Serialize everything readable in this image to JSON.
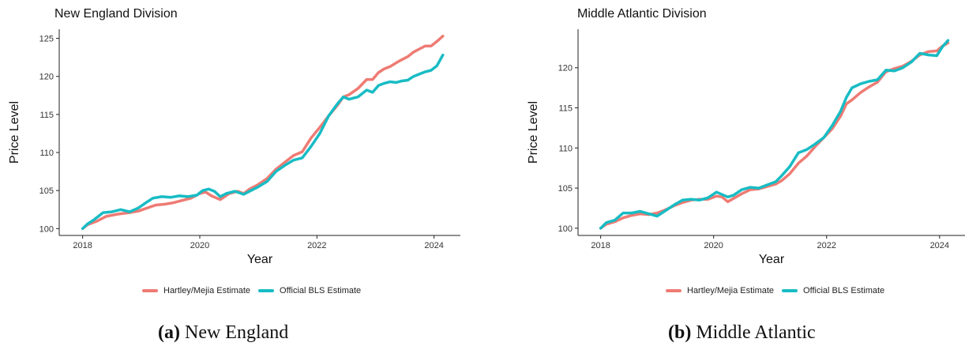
{
  "colors": {
    "hartley": "#ee7b74",
    "bls": "#18bcc4"
  },
  "legend": {
    "hartley_label": "Hartley/Mejia Estimate",
    "bls_label": "Official BLS Estimate"
  },
  "chart_data": [
    {
      "type": "line",
      "title": "New England Division",
      "xlabel": "Year",
      "ylabel": "Price Level",
      "xlim": [
        2017.6,
        2024.45
      ],
      "ylim": [
        99.1,
        126.2
      ],
      "xticks": [
        2018,
        2020,
        2022,
        2024
      ],
      "yticks": [
        100,
        105,
        110,
        115,
        120,
        125
      ],
      "legend_position": "bottom",
      "caption_letter": "(a)",
      "caption_text": "New England",
      "series": [
        {
          "name": "Hartley/Mejia Estimate",
          "color": "#ee7b74",
          "x": [
            2018.0,
            2018.08,
            2018.25,
            2018.4,
            2018.6,
            2018.8,
            2018.95,
            2019.1,
            2019.25,
            2019.4,
            2019.55,
            2019.7,
            2019.85,
            2020.0,
            2020.1,
            2020.2,
            2020.35,
            2020.5,
            2020.65,
            2020.75,
            2020.85,
            2021.0,
            2021.15,
            2021.3,
            2021.45,
            2021.6,
            2021.75,
            2021.9,
            2022.05,
            2022.2,
            2022.35,
            2022.45,
            2022.55,
            2022.7,
            2022.85,
            2022.95,
            2023.05,
            2023.15,
            2023.25,
            2023.4,
            2023.55,
            2023.65,
            2023.75,
            2023.85,
            2023.95,
            2024.05,
            2024.15
          ],
          "y": [
            100.0,
            100.5,
            101.0,
            101.6,
            101.9,
            102.1,
            102.3,
            102.7,
            103.1,
            103.2,
            103.4,
            103.7,
            104.0,
            104.6,
            104.8,
            104.3,
            103.8,
            104.6,
            104.9,
            104.6,
            105.2,
            105.8,
            106.6,
            107.8,
            108.7,
            109.6,
            110.1,
            111.9,
            113.3,
            114.8,
            116.2,
            117.3,
            117.6,
            118.4,
            119.6,
            119.6,
            120.5,
            121.0,
            121.3,
            122.0,
            122.6,
            123.2,
            123.6,
            124.0,
            124.0,
            124.6,
            125.3
          ]
        },
        {
          "name": "Official BLS Estimate",
          "color": "#18bcc4",
          "x": [
            2018.0,
            2018.08,
            2018.2,
            2018.35,
            2018.5,
            2018.65,
            2018.8,
            2018.95,
            2019.1,
            2019.2,
            2019.35,
            2019.5,
            2019.65,
            2019.8,
            2019.95,
            2020.05,
            2020.15,
            2020.25,
            2020.35,
            2020.45,
            2020.6,
            2020.75,
            2020.85,
            2021.0,
            2021.15,
            2021.3,
            2021.45,
            2021.6,
            2021.75,
            2021.9,
            2022.05,
            2022.2,
            2022.35,
            2022.45,
            2022.55,
            2022.7,
            2022.85,
            2022.95,
            2023.05,
            2023.15,
            2023.25,
            2023.35,
            2023.45,
            2023.55,
            2023.65,
            2023.75,
            2023.85,
            2023.95,
            2024.05,
            2024.15
          ],
          "y": [
            100.0,
            100.6,
            101.2,
            102.1,
            102.2,
            102.5,
            102.2,
            102.7,
            103.5,
            104.0,
            104.2,
            104.1,
            104.3,
            104.2,
            104.4,
            105.0,
            105.2,
            104.9,
            104.2,
            104.6,
            104.9,
            104.5,
            104.9,
            105.5,
            106.2,
            107.5,
            108.3,
            109.0,
            109.3,
            110.8,
            112.5,
            114.8,
            116.4,
            117.3,
            117.0,
            117.3,
            118.2,
            117.9,
            118.8,
            119.1,
            119.3,
            119.2,
            119.4,
            119.5,
            120.0,
            120.3,
            120.6,
            120.8,
            121.4,
            122.8
          ]
        }
      ]
    },
    {
      "type": "line",
      "title": "Middle Atlantic Division",
      "xlabel": "Year",
      "ylabel": "Price Level",
      "xlim": [
        2017.6,
        2024.45
      ],
      "ylim": [
        99.1,
        124.8
      ],
      "xticks": [
        2018,
        2020,
        2022,
        2024
      ],
      "yticks": [
        100,
        105,
        110,
        115,
        120
      ],
      "legend_position": "bottom",
      "caption_letter": "(b)",
      "caption_text": "Middle Atlantic",
      "series": [
        {
          "name": "Hartley/Mejia Estimate",
          "color": "#ee7b74",
          "x": [
            2018.0,
            2018.1,
            2018.25,
            2018.4,
            2018.55,
            2018.7,
            2018.85,
            2019.0,
            2019.15,
            2019.3,
            2019.45,
            2019.6,
            2019.75,
            2019.9,
            2020.05,
            2020.15,
            2020.25,
            2020.35,
            2020.5,
            2020.65,
            2020.8,
            2020.95,
            2021.1,
            2021.2,
            2021.35,
            2021.5,
            2021.65,
            2021.8,
            2021.95,
            2022.1,
            2022.25,
            2022.35,
            2022.45,
            2022.6,
            2022.75,
            2022.9,
            2023.05,
            2023.2,
            2023.35,
            2023.5,
            2023.65,
            2023.8,
            2023.95,
            2024.05,
            2024.15
          ],
          "y": [
            100.0,
            100.5,
            100.8,
            101.3,
            101.6,
            101.8,
            101.7,
            101.9,
            102.3,
            102.8,
            103.2,
            103.5,
            103.6,
            103.6,
            104.0,
            103.9,
            103.3,
            103.7,
            104.3,
            104.8,
            104.9,
            105.2,
            105.5,
            105.9,
            106.8,
            108.1,
            109.0,
            110.2,
            111.3,
            112.4,
            114.0,
            115.5,
            116.0,
            116.9,
            117.6,
            118.2,
            119.5,
            119.9,
            120.2,
            120.8,
            121.6,
            122.0,
            122.1,
            122.7,
            123.1
          ]
        },
        {
          "name": "Official BLS Estimate",
          "color": "#18bcc4",
          "x": [
            2018.0,
            2018.1,
            2018.25,
            2018.4,
            2018.55,
            2018.7,
            2018.85,
            2019.0,
            2019.15,
            2019.3,
            2019.45,
            2019.6,
            2019.75,
            2019.9,
            2020.05,
            2020.15,
            2020.25,
            2020.35,
            2020.5,
            2020.65,
            2020.8,
            2020.95,
            2021.1,
            2021.2,
            2021.35,
            2021.5,
            2021.65,
            2021.8,
            2021.95,
            2022.1,
            2022.25,
            2022.35,
            2022.45,
            2022.6,
            2022.75,
            2022.9,
            2023.05,
            2023.2,
            2023.35,
            2023.5,
            2023.65,
            2023.8,
            2023.95,
            2024.05,
            2024.15
          ],
          "y": [
            100.0,
            100.7,
            101.0,
            101.9,
            101.9,
            102.1,
            101.8,
            101.5,
            102.2,
            102.9,
            103.5,
            103.6,
            103.5,
            103.8,
            104.5,
            104.2,
            103.9,
            104.1,
            104.8,
            105.1,
            105.0,
            105.4,
            105.8,
            106.5,
            107.7,
            109.4,
            109.8,
            110.5,
            111.3,
            112.8,
            114.6,
            116.3,
            117.5,
            118.0,
            118.3,
            118.5,
            119.7,
            119.6,
            120.0,
            120.7,
            121.8,
            121.6,
            121.5,
            122.6,
            123.4
          ]
        }
      ]
    }
  ]
}
